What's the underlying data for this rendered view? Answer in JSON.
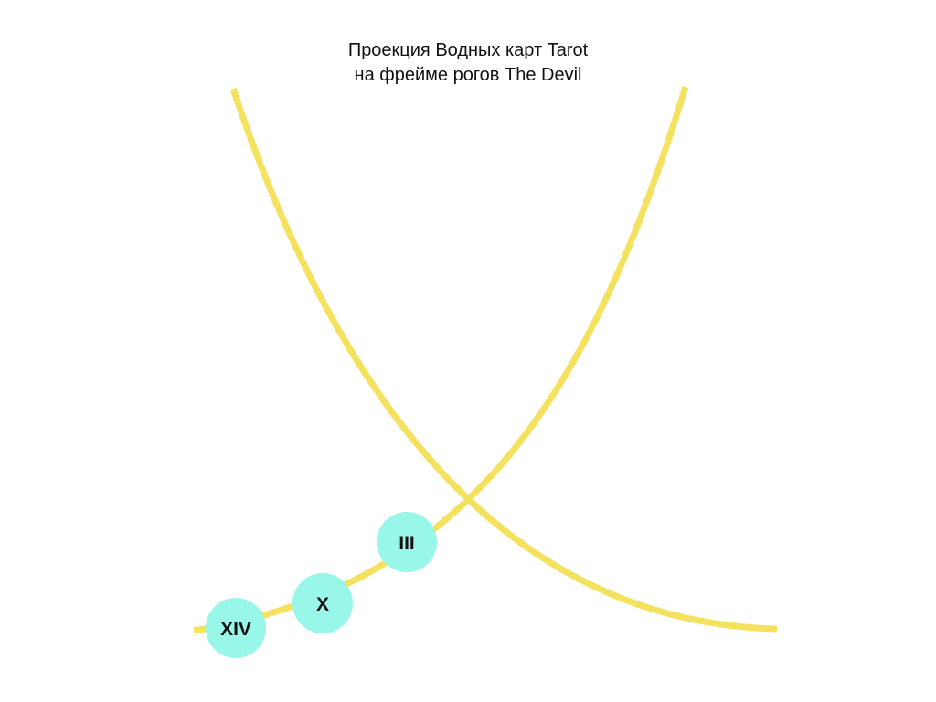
{
  "title": {
    "line1": "Проекция Водных карт Tarot",
    "line2": "на фрейме рогов The Devil"
  },
  "colors": {
    "background": "#ffffff",
    "horn": "#f4e25e",
    "node_fill": "#98f7e8",
    "text": "#111111"
  },
  "horns": [
    {
      "name": "left-horn",
      "direction": "descending"
    },
    {
      "name": "right-horn",
      "direction": "ascending"
    }
  ],
  "nodes": [
    {
      "label": "XIV"
    },
    {
      "label": "X"
    },
    {
      "label": "III"
    }
  ]
}
